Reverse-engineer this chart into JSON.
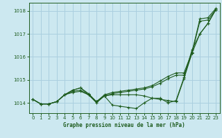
{
  "title": "Graphe pression niveau de la mer (hPa)",
  "bg_color": "#cce8f0",
  "grid_color": "#aacfdf",
  "line_color": "#1e5c1e",
  "marker_color": "#1e5c1e",
  "xlim": [
    -0.5,
    23.5
  ],
  "ylim": [
    1013.55,
    1018.35
  ],
  "yticks": [
    1014,
    1015,
    1016,
    1017,
    1018
  ],
  "xticks": [
    0,
    1,
    2,
    3,
    4,
    5,
    6,
    7,
    8,
    9,
    10,
    11,
    12,
    13,
    14,
    15,
    16,
    17,
    18,
    19,
    20,
    21,
    22,
    23
  ],
  "series": [
    [
      1014.15,
      1013.95,
      1013.95,
      1014.05,
      1014.35,
      1014.45,
      1014.5,
      1014.35,
      1014.0,
      1014.3,
      1013.9,
      1013.85,
      1013.8,
      1013.75,
      1014.0,
      1014.2,
      1014.2,
      1014.0,
      1014.1,
      1015.1,
      1016.3,
      1017.0,
      1017.45,
      1018.05
    ],
    [
      1014.15,
      1013.95,
      1013.95,
      1014.05,
      1014.35,
      1014.5,
      1014.55,
      1014.35,
      1014.05,
      1014.3,
      1014.4,
      1014.45,
      1014.5,
      1014.55,
      1014.6,
      1014.7,
      1014.85,
      1015.05,
      1015.2,
      1015.2,
      1016.15,
      1017.55,
      1017.6,
      1018.05
    ],
    [
      1014.15,
      1013.95,
      1013.95,
      1014.05,
      1014.35,
      1014.55,
      1014.65,
      1014.4,
      1014.05,
      1014.35,
      1014.45,
      1014.5,
      1014.55,
      1014.6,
      1014.65,
      1014.75,
      1014.95,
      1015.15,
      1015.3,
      1015.3,
      1016.2,
      1017.65,
      1017.7,
      1018.1
    ],
    [
      1014.15,
      1013.95,
      1013.95,
      1014.05,
      1014.35,
      1014.55,
      1014.65,
      1014.35,
      1014.05,
      1014.3,
      1014.35,
      1014.35,
      1014.35,
      1014.35,
      1014.3,
      1014.2,
      1014.15,
      1014.1,
      1014.05,
      1015.05,
      1016.15,
      1017.0,
      1017.45,
      1018.05
    ]
  ]
}
